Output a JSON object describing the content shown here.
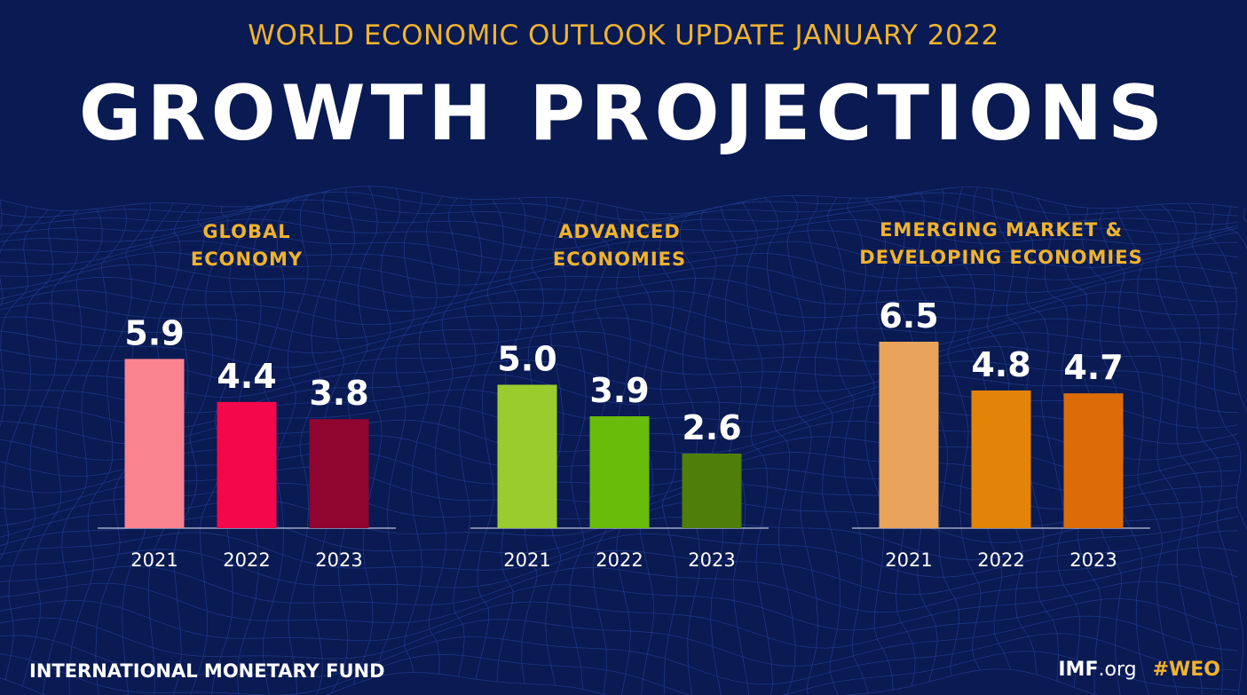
{
  "supertitle": "WORLD ECONOMIC OUTLOOK UPDATE JANUARY 2022",
  "title": "GROWTH PROJECTIONS",
  "footer": {
    "org": "INTERNATIONAL MONETARY FUND",
    "site_bold": "IMF",
    "site_rest": ".org",
    "hashtag": "#WEO"
  },
  "colors": {
    "background": "#0a1a52",
    "accent": "#f0b32e"
  },
  "chart_data": [
    {
      "type": "bar",
      "title_lines": [
        "GLOBAL",
        "ECONOMY"
      ],
      "categories": [
        "2021",
        "2022",
        "2023"
      ],
      "values": [
        5.9,
        4.4,
        3.8
      ],
      "value_labels": [
        "5.9",
        "4.4",
        "3.8"
      ],
      "colors": [
        "#fa8390",
        "#f5074c",
        "#900530"
      ],
      "ylim": [
        0,
        6.5
      ]
    },
    {
      "type": "bar",
      "title_lines": [
        "ADVANCED",
        "ECONOMIES"
      ],
      "categories": [
        "2021",
        "2022",
        "2023"
      ],
      "values": [
        5.0,
        3.9,
        2.6
      ],
      "value_labels": [
        "5.0",
        "3.9",
        "2.6"
      ],
      "colors": [
        "#99cd2e",
        "#69bc0a",
        "#4f7e0a"
      ],
      "ylim": [
        0,
        6.5
      ]
    },
    {
      "type": "bar",
      "title_lines": [
        "EMERGING MARKET &",
        "DEVELOPING ECONOMIES"
      ],
      "categories": [
        "2021",
        "2022",
        "2023"
      ],
      "values": [
        6.5,
        4.8,
        4.7
      ],
      "value_labels": [
        "6.5",
        "4.8",
        "4.7"
      ],
      "colors": [
        "#e9a35a",
        "#e38408",
        "#dd6c08"
      ],
      "ylim": [
        0,
        6.5
      ]
    }
  ]
}
